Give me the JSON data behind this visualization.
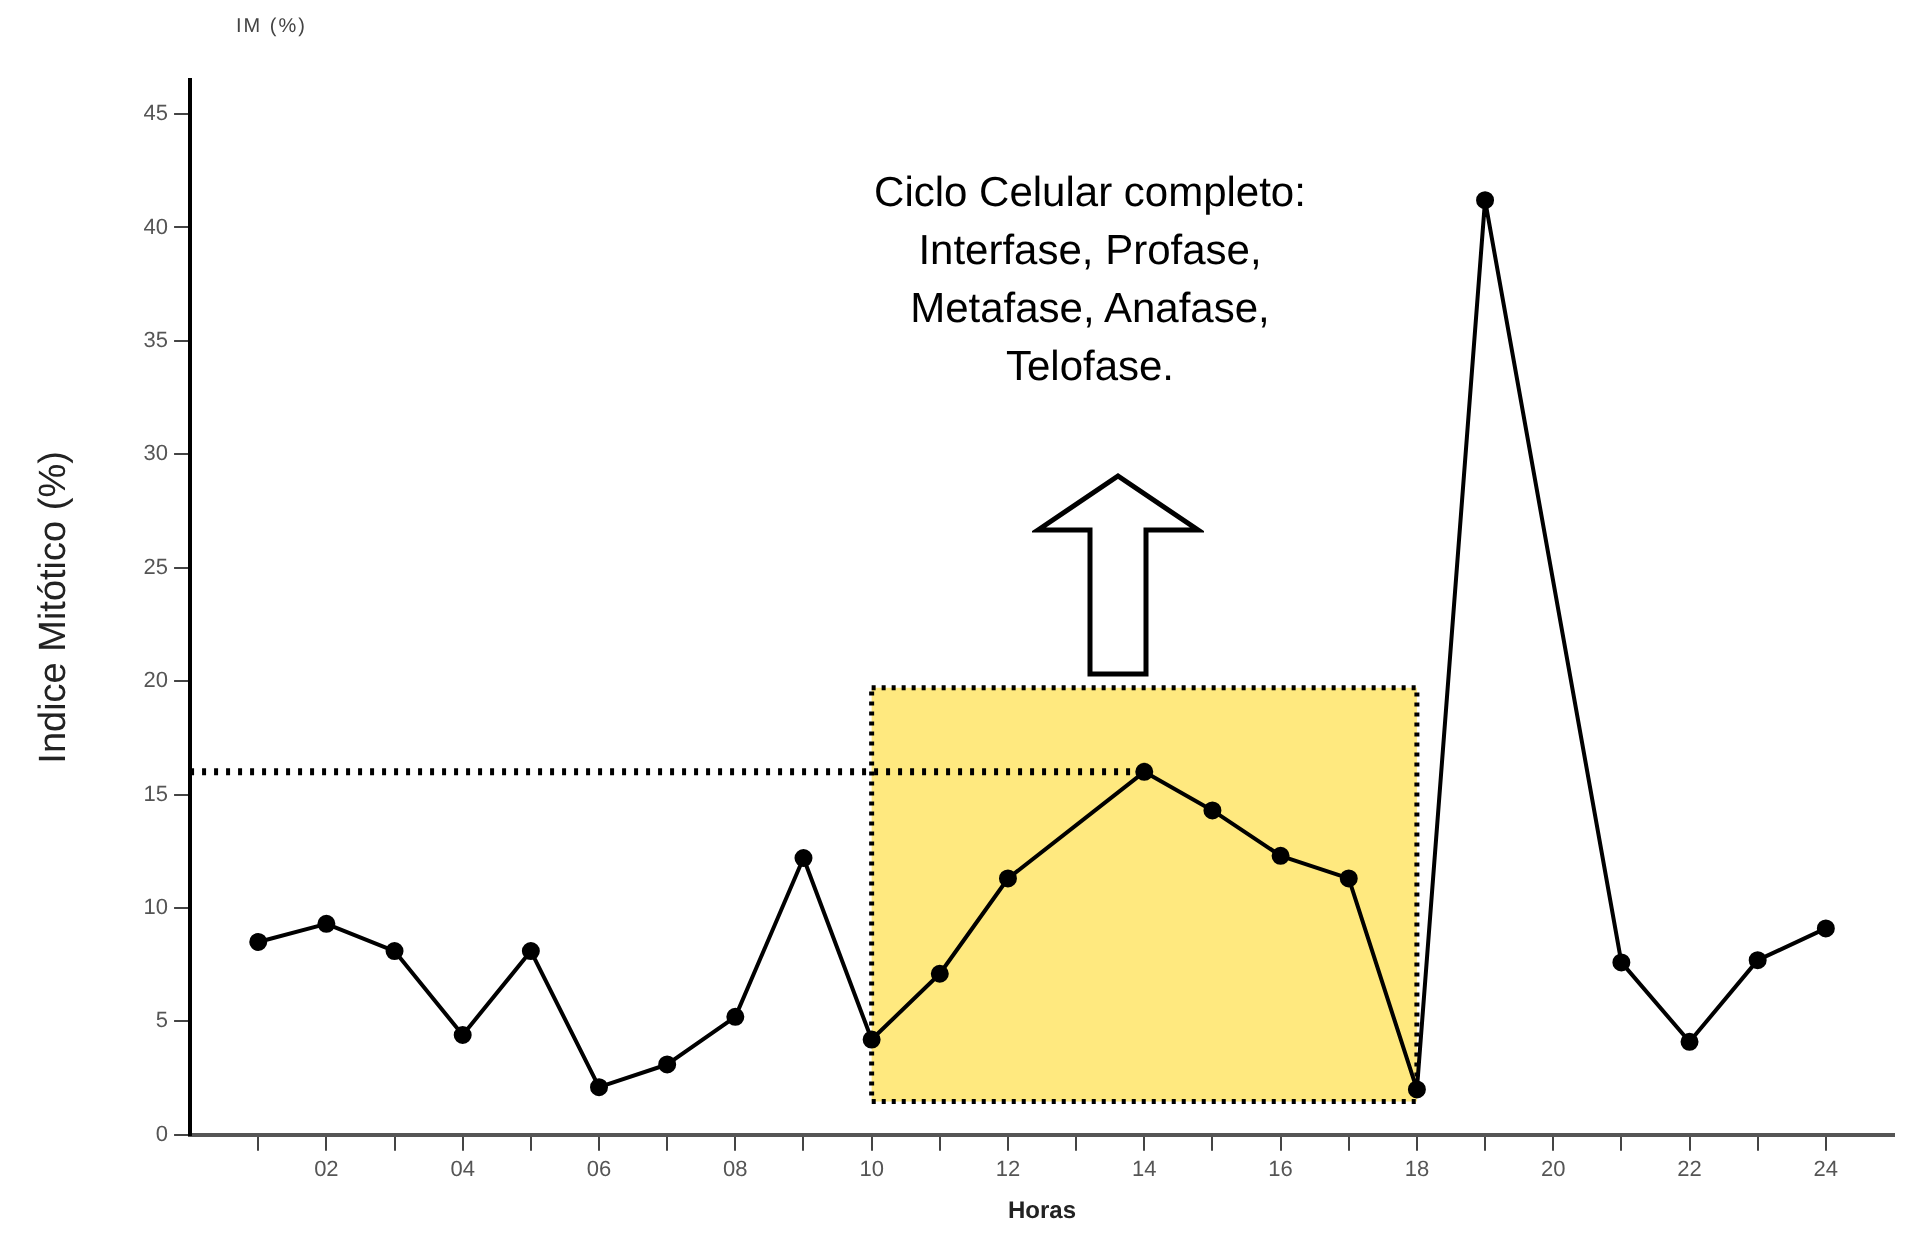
{
  "chart_data": {
    "type": "line",
    "xlabel": "Horas",
    "ylabel": "Indice Mitótico (%)",
    "annotations": [
      "Ciclo Celular completo:\nInterfase, Profase,\nMetafase, Anafase,\nTelofase.",
      "IM (%)"
    ],
    "x": [
      1,
      2,
      3,
      4,
      5,
      6,
      7,
      8,
      9,
      10,
      11,
      12,
      14,
      15,
      16,
      17,
      18,
      19,
      21,
      22,
      23,
      24
    ],
    "series": [
      {
        "color": "#000000",
        "values": [
          8.5,
          9.3,
          8.1,
          4.4,
          8.1,
          2.1,
          3.1,
          5.2,
          12.2,
          4.2,
          7.1,
          11.3,
          16.0,
          14.3,
          12.3,
          11.3,
          2.0,
          41.2,
          7.6,
          4.1,
          7.7,
          9.1
        ]
      }
    ],
    "xlim": [
      0,
      25
    ],
    "xticks": [
      {
        "value": 1,
        "label": null
      },
      {
        "value": 2,
        "label": "02"
      },
      {
        "value": 3,
        "label": null
      },
      {
        "value": 4,
        "label": "04"
      },
      {
        "value": 5,
        "label": null
      },
      {
        "value": 6,
        "label": "06"
      },
      {
        "value": 7,
        "label": null
      },
      {
        "value": 8,
        "label": "08"
      },
      {
        "value": 9,
        "label": null
      },
      10,
      {
        "value": 11,
        "label": null
      },
      12,
      {
        "value": 13,
        "label": null
      },
      14,
      {
        "value": 15,
        "label": null
      },
      16,
      {
        "value": 17,
        "label": null
      },
      18,
      {
        "value": 19,
        "label": null
      },
      20,
      {
        "value": 21,
        "label": null
      },
      22,
      {
        "value": 23,
        "label": null
      },
      24
    ],
    "ylim": [
      0,
      46.5
    ],
    "yticks": [
      0,
      5,
      10,
      15,
      20,
      25,
      30,
      35,
      40,
      45
    ],
    "ref_lines": [
      {
        "axis": "y",
        "value": 16,
        "color": "#000000",
        "line_style": "dotted"
      }
    ],
    "bands": [
      {
        "axis": "x",
        "from": 10,
        "to": 18,
        "color": "#ffe97f"
      }
    ],
    "grid": false,
    "legend": false,
    "marker": "circle",
    "line_style": "solid"
  }
}
